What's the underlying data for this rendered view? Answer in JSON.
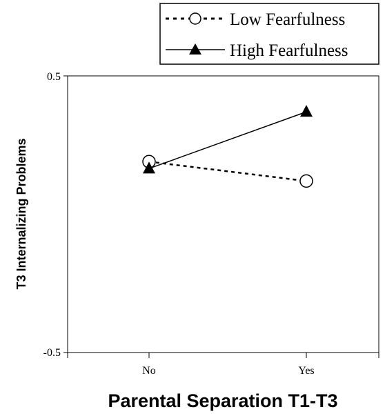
{
  "chart_data": {
    "type": "line",
    "categories": [
      "No",
      "Yes"
    ],
    "series": [
      {
        "name": "Low Fearfulness",
        "values": [
          0.19,
          0.12
        ],
        "style": "dashed",
        "marker": "open-circle"
      },
      {
        "name": "High Fearfulness",
        "values": [
          0.165,
          0.37
        ],
        "style": "solid",
        "marker": "filled-triangle"
      }
    ],
    "xlabel": "Parental Separation T1-T3",
    "ylabel": "T3 Internalizing Problems",
    "ylim": [
      -0.5,
      0.5
    ],
    "yticks": [
      {
        "value": 0.5,
        "label": "0.5"
      },
      {
        "value": -0.5,
        "label": "-0.5"
      }
    ],
    "grid": false,
    "legend_position": "top-right",
    "colors": {
      "line": "#000000",
      "background": "#ffffff"
    }
  }
}
